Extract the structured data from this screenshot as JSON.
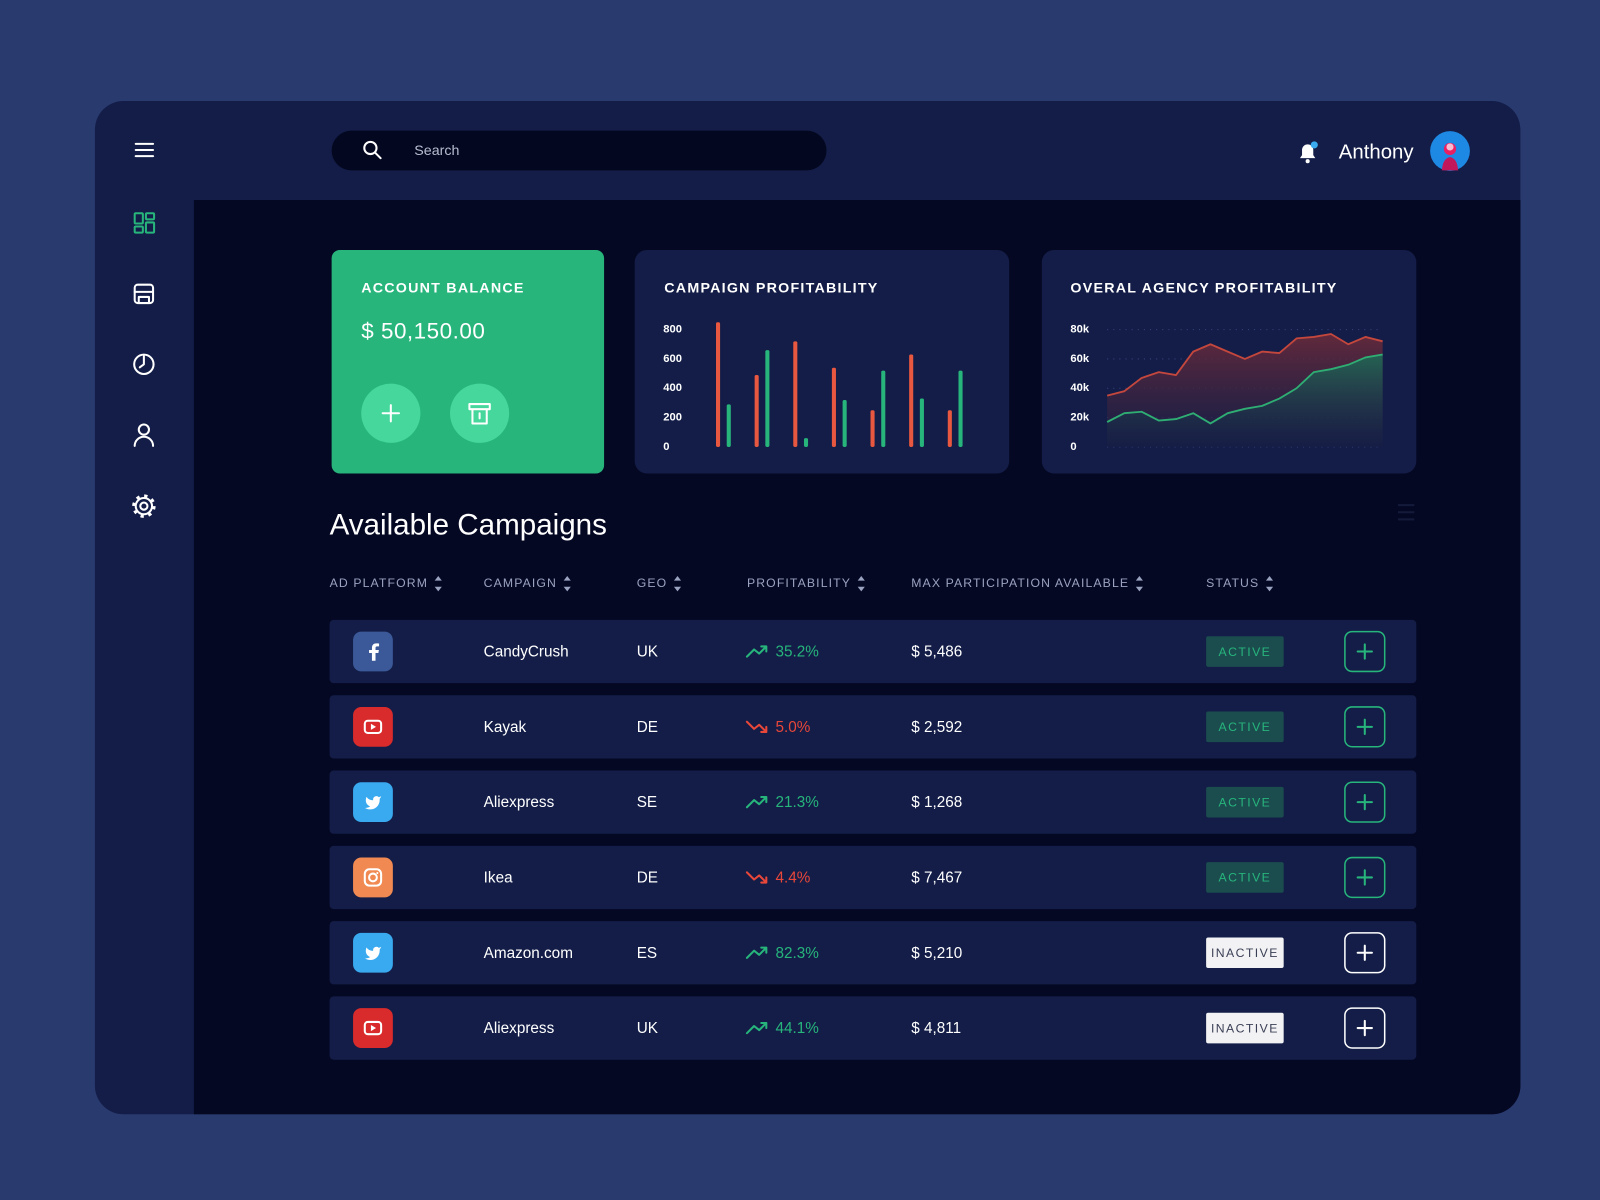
{
  "header": {
    "search_placeholder": "Search",
    "user": "Anthony"
  },
  "balance": {
    "title": "ACCOUNT BALANCE",
    "amount": "$ 50,150.00"
  },
  "chart_data": [
    {
      "type": "bar",
      "title": "CAMPAIGN PROFITABILITY",
      "categories": [
        null,
        null,
        null,
        null,
        null,
        null,
        null
      ],
      "series": [
        {
          "color": "#e8573f",
          "values": [
            850,
            490,
            720,
            540,
            250,
            630,
            250
          ]
        },
        {
          "color": "#27b57c",
          "values": [
            290,
            660,
            60,
            320,
            520,
            330,
            520
          ]
        }
      ],
      "ylim": [
        0,
        850
      ],
      "yticks": [
        0,
        200,
        400,
        600,
        800
      ]
    },
    {
      "type": "area",
      "title": "OVERAL AGENCY PROFITABILITY",
      "categories": [
        null,
        null,
        null,
        null,
        null,
        null,
        null,
        null,
        null,
        null,
        null,
        null,
        null,
        null,
        null,
        null,
        null
      ],
      "series": [
        {
          "color": "#c4473d",
          "values": [
            35000,
            38000,
            47000,
            51000,
            49000,
            65000,
            70000,
            65000,
            60000,
            65000,
            64000,
            74000,
            75000,
            77000,
            70000,
            75000,
            72000
          ]
        },
        {
          "color": "#2fae74",
          "values": [
            17000,
            23000,
            24000,
            18000,
            19000,
            23000,
            16000,
            23000,
            26000,
            28000,
            33000,
            40000,
            51000,
            53000,
            56000,
            61000,
            63000
          ]
        }
      ],
      "ylim": [
        0,
        80000
      ],
      "yticks": [
        0,
        {
          "value": 20000,
          "label": "20k"
        },
        {
          "value": 40000,
          "label": "40k"
        },
        {
          "value": 60000,
          "label": "60k"
        },
        {
          "value": 80000,
          "label": "80k"
        }
      ],
      "grid": true
    }
  ],
  "section_title": "Available Campaigns",
  "table": {
    "columns": [
      "AD PLATFORM",
      "CAMPAIGN",
      "GEO",
      "PROFITABILITY",
      "MAX PARTICIPATION AVAILABLE",
      "STATUS"
    ],
    "rows": [
      {
        "campaign": "CandyCrush",
        "geo": "UK",
        "profitability": "35.2%",
        "max_participation": "$ 5,486",
        "status": "ACTIVE"
      },
      {
        "campaign": "Kayak",
        "geo": "DE",
        "profitability": "5.0%",
        "max_participation": "$ 2,592",
        "status": "ACTIVE"
      },
      {
        "campaign": "Aliexpress",
        "geo": "SE",
        "profitability": "21.3%",
        "max_participation": "$ 1,268",
        "status": "ACTIVE"
      },
      {
        "campaign": "Ikea",
        "geo": "DE",
        "profitability": "4.4%",
        "max_participation": "$ 7,467",
        "status": "ACTIVE"
      },
      {
        "campaign": "Amazon.com",
        "geo": "ES",
        "profitability": "82.3%",
        "max_participation": "$ 5,210",
        "status": "INACTIVE"
      },
      {
        "campaign": "Aliexpress",
        "geo": "UK",
        "profitability": "44.1%",
        "max_participation": "$ 4,811",
        "status": "INACTIVE"
      }
    ]
  }
}
